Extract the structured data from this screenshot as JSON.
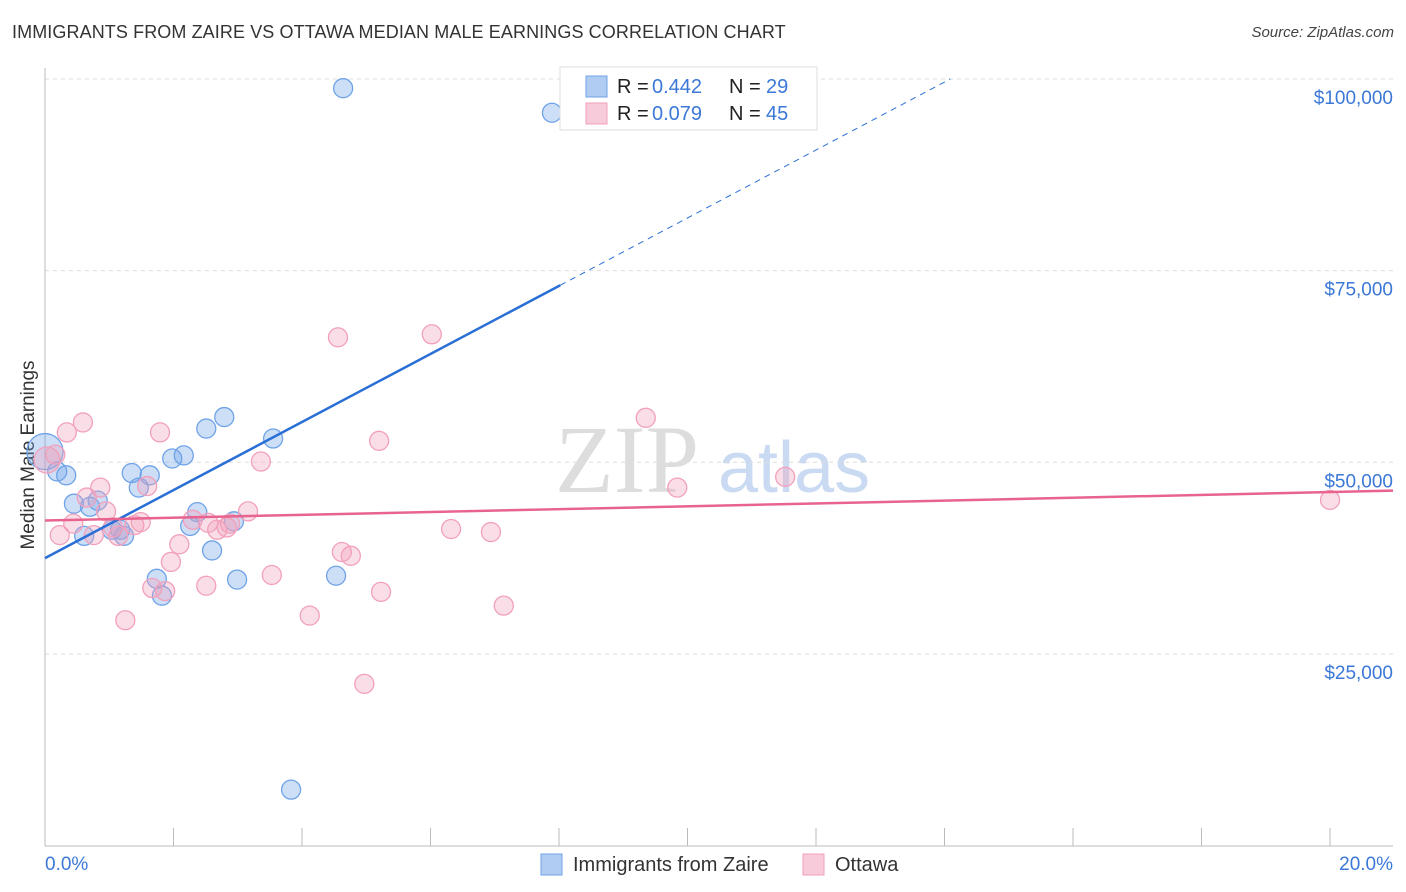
{
  "title": "IMMIGRANTS FROM ZAIRE VS OTTAWA MEDIAN MALE EARNINGS CORRELATION CHART",
  "source": "Source: ZipAtlas.com",
  "watermark": "ZIPatlas",
  "chart_data": {
    "type": "scatter",
    "title": "IMMIGRANTS FROM ZAIRE VS OTTAWA MEDIAN MALE EARNINGS CORRELATION CHART",
    "xlabel": "",
    "ylabel": "Median Male Earnings",
    "xlim": [
      0,
      20.98
    ],
    "ylim": [
      0,
      100000
    ],
    "x_tick_labels": [
      "0.0%",
      "20.0%"
    ],
    "y_ticks": [
      25000,
      50000,
      75000,
      100000
    ],
    "y_tick_labels": [
      "$25,000",
      "$50,000",
      "$75,000",
      "$100,000"
    ],
    "grid": true,
    "legend_placement": "top-center",
    "series": [
      {
        "name": "Immigrants from Zaire",
        "color": "#6fa3e8",
        "line_color": "#2a6fd6",
        "R": "0.442",
        "N": "29",
        "R_label": "R = ",
        "N_label": "N = ",
        "trend": {
          "x": [
            0,
            8.02
          ],
          "y": [
            37500,
            73100
          ],
          "dashed_to": [
            14.09,
            100000
          ]
        },
        "points": [
          [
            0,
            51400
          ],
          [
            0.19,
            48800
          ],
          [
            0.33,
            48300
          ],
          [
            0.45,
            44600
          ],
          [
            0.7,
            44200
          ],
          [
            0.82,
            45000
          ],
          [
            0.61,
            40400
          ],
          [
            1.04,
            41200
          ],
          [
            1.17,
            41200
          ],
          [
            1.23,
            40400
          ],
          [
            1.35,
            48600
          ],
          [
            1.46,
            46700
          ],
          [
            1.63,
            48300
          ],
          [
            1.98,
            50500
          ],
          [
            2.16,
            50900
          ],
          [
            2.51,
            54400
          ],
          [
            2.79,
            55900
          ],
          [
            3.55,
            53100
          ],
          [
            2.26,
            41700
          ],
          [
            2.37,
            43500
          ],
          [
            2.6,
            38500
          ],
          [
            2.94,
            42300
          ],
          [
            1.74,
            34800
          ],
          [
            1.82,
            32600
          ],
          [
            2.99,
            34700
          ],
          [
            4.53,
            35200
          ],
          [
            4.64,
            98800
          ],
          [
            7.89,
            95600
          ],
          [
            3.83,
            7300
          ]
        ]
      },
      {
        "name": "Ottawa",
        "color": "#f2a0bb",
        "line_color": "#e8648f",
        "R": "0.079",
        "N": "45",
        "R_label": "R = ",
        "N_label": "N = ",
        "trend": {
          "x": [
            0,
            20.98
          ],
          "y": [
            42400,
            46300
          ]
        },
        "points": [
          [
            0.03,
            50300
          ],
          [
            0.16,
            51000
          ],
          [
            0.34,
            53900
          ],
          [
            0.59,
            55200
          ],
          [
            0.23,
            40500
          ],
          [
            0.44,
            42000
          ],
          [
            0.65,
            45400
          ],
          [
            0.86,
            46700
          ],
          [
            0.95,
            43600
          ],
          [
            0.76,
            40500
          ],
          [
            1.06,
            41500
          ],
          [
            1.14,
            40400
          ],
          [
            1.39,
            41800
          ],
          [
            1.49,
            42200
          ],
          [
            1.59,
            46900
          ],
          [
            1.79,
            53900
          ],
          [
            2.09,
            39300
          ],
          [
            1.96,
            37000
          ],
          [
            1.67,
            33600
          ],
          [
            1.87,
            33200
          ],
          [
            1.25,
            29400
          ],
          [
            2.3,
            42500
          ],
          [
            2.54,
            42100
          ],
          [
            2.68,
            41200
          ],
          [
            2.83,
            41500
          ],
          [
            2.88,
            42000
          ],
          [
            3.16,
            43600
          ],
          [
            2.51,
            33900
          ],
          [
            3.36,
            50100
          ],
          [
            3.53,
            35300
          ],
          [
            4.12,
            30000
          ],
          [
            4.56,
            66300
          ],
          [
            4.62,
            38300
          ],
          [
            4.76,
            37800
          ],
          [
            5.2,
            52800
          ],
          [
            5.23,
            33100
          ],
          [
            4.97,
            21100
          ],
          [
            6.02,
            66700
          ],
          [
            6.32,
            41300
          ],
          [
            6.94,
            40900
          ],
          [
            7.14,
            31300
          ],
          [
            9.35,
            55800
          ],
          [
            9.84,
            46700
          ],
          [
            11.52,
            48100
          ],
          [
            20.0,
            45100
          ]
        ]
      }
    ]
  }
}
